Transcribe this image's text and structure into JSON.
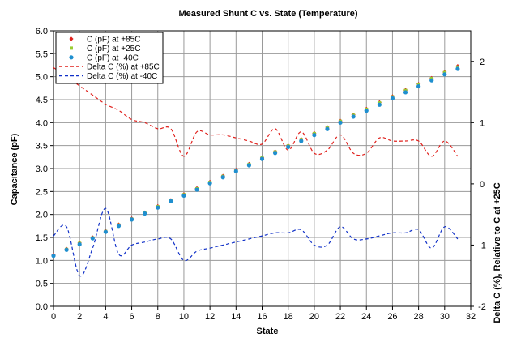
{
  "chart_data": {
    "type": "scatter",
    "title": "Measured Shunt C vs. State (Temperature)",
    "xlabel": "State",
    "ylabel": "Capacitance (pF)",
    "y2label": "Delta C (%), Relative to C at +25C",
    "xlim": [
      0,
      32
    ],
    "ylim": [
      0,
      6
    ],
    "y2lim": [
      -2,
      2.5
    ],
    "xticks": [
      0,
      2,
      4,
      6,
      8,
      10,
      12,
      14,
      16,
      18,
      20,
      22,
      24,
      26,
      28,
      30,
      32
    ],
    "yticks": [
      0,
      0.5,
      1,
      1.5,
      2,
      2.5,
      3,
      3.5,
      4,
      4.5,
      5,
      5.5,
      6
    ],
    "y2ticks": [
      -2,
      -1,
      0,
      1,
      2
    ],
    "grid": true,
    "legend_position": "top-left",
    "x": [
      0,
      1,
      2,
      3,
      4,
      5,
      6,
      7,
      8,
      9,
      10,
      11,
      12,
      13,
      14,
      15,
      16,
      17,
      18,
      19,
      20,
      21,
      22,
      23,
      24,
      25,
      26,
      27,
      28,
      29,
      30,
      31
    ],
    "series": [
      {
        "name": "C (pF) at +85C",
        "axis": "left",
        "style": "marker",
        "marker": "diamond",
        "color": "#e0201c",
        "values": [
          1.12,
          1.25,
          1.38,
          1.5,
          1.64,
          1.78,
          1.91,
          2.04,
          2.18,
          2.31,
          2.44,
          2.57,
          2.71,
          2.84,
          2.97,
          3.1,
          3.24,
          3.37,
          3.5,
          3.64,
          3.77,
          3.9,
          4.04,
          4.17,
          4.3,
          4.44,
          4.57,
          4.71,
          4.84,
          4.97,
          5.1,
          5.23
        ]
      },
      {
        "name": "C (pF) at +25C",
        "axis": "left",
        "style": "marker",
        "marker": "square",
        "color": "#9acd32",
        "values": [
          1.11,
          1.24,
          1.37,
          1.49,
          1.63,
          1.77,
          1.9,
          2.03,
          2.17,
          2.3,
          2.43,
          2.56,
          2.7,
          2.83,
          2.96,
          3.09,
          3.23,
          3.36,
          3.49,
          3.63,
          3.76,
          3.89,
          4.03,
          4.16,
          4.29,
          4.43,
          4.56,
          4.7,
          4.83,
          4.96,
          5.09,
          5.21
        ]
      },
      {
        "name": "C (pF) at -40C",
        "axis": "left",
        "style": "marker",
        "marker": "circle",
        "color": "#1f8fcf",
        "values": [
          1.1,
          1.23,
          1.35,
          1.48,
          1.62,
          1.75,
          1.89,
          2.02,
          2.15,
          2.29,
          2.41,
          2.54,
          2.68,
          2.81,
          2.94,
          3.07,
          3.21,
          3.34,
          3.47,
          3.6,
          3.73,
          3.86,
          4.0,
          4.13,
          4.26,
          4.39,
          4.53,
          4.66,
          4.79,
          4.92,
          5.05,
          5.17
        ]
      },
      {
        "name": "Delta C (%) at +85C",
        "axis": "right",
        "style": "dashed-line",
        "color": "#e0201c",
        "values": [
          1.9,
          1.75,
          1.6,
          1.45,
          1.3,
          1.2,
          1.05,
          1.0,
          0.9,
          0.9,
          0.45,
          0.85,
          0.8,
          0.8,
          0.75,
          0.7,
          0.65,
          0.9,
          0.55,
          0.85,
          0.5,
          0.55,
          0.8,
          0.5,
          0.5,
          0.75,
          0.7,
          0.7,
          0.7,
          0.45,
          0.7,
          0.45
        ]
      },
      {
        "name": "Delta C (%) at -40C",
        "axis": "right",
        "style": "dashed-line",
        "color": "#1030c8",
        "values": [
          -0.85,
          -0.7,
          -1.5,
          -1.05,
          -0.4,
          -1.15,
          -1.0,
          -0.95,
          -0.9,
          -0.9,
          -1.25,
          -1.1,
          -1.05,
          -1.0,
          -0.95,
          -0.9,
          -0.85,
          -0.8,
          -0.8,
          -0.75,
          -1.0,
          -1.0,
          -0.7,
          -0.9,
          -0.9,
          -0.85,
          -0.8,
          -0.8,
          -0.75,
          -1.05,
          -0.7,
          -0.9
        ]
      }
    ]
  }
}
